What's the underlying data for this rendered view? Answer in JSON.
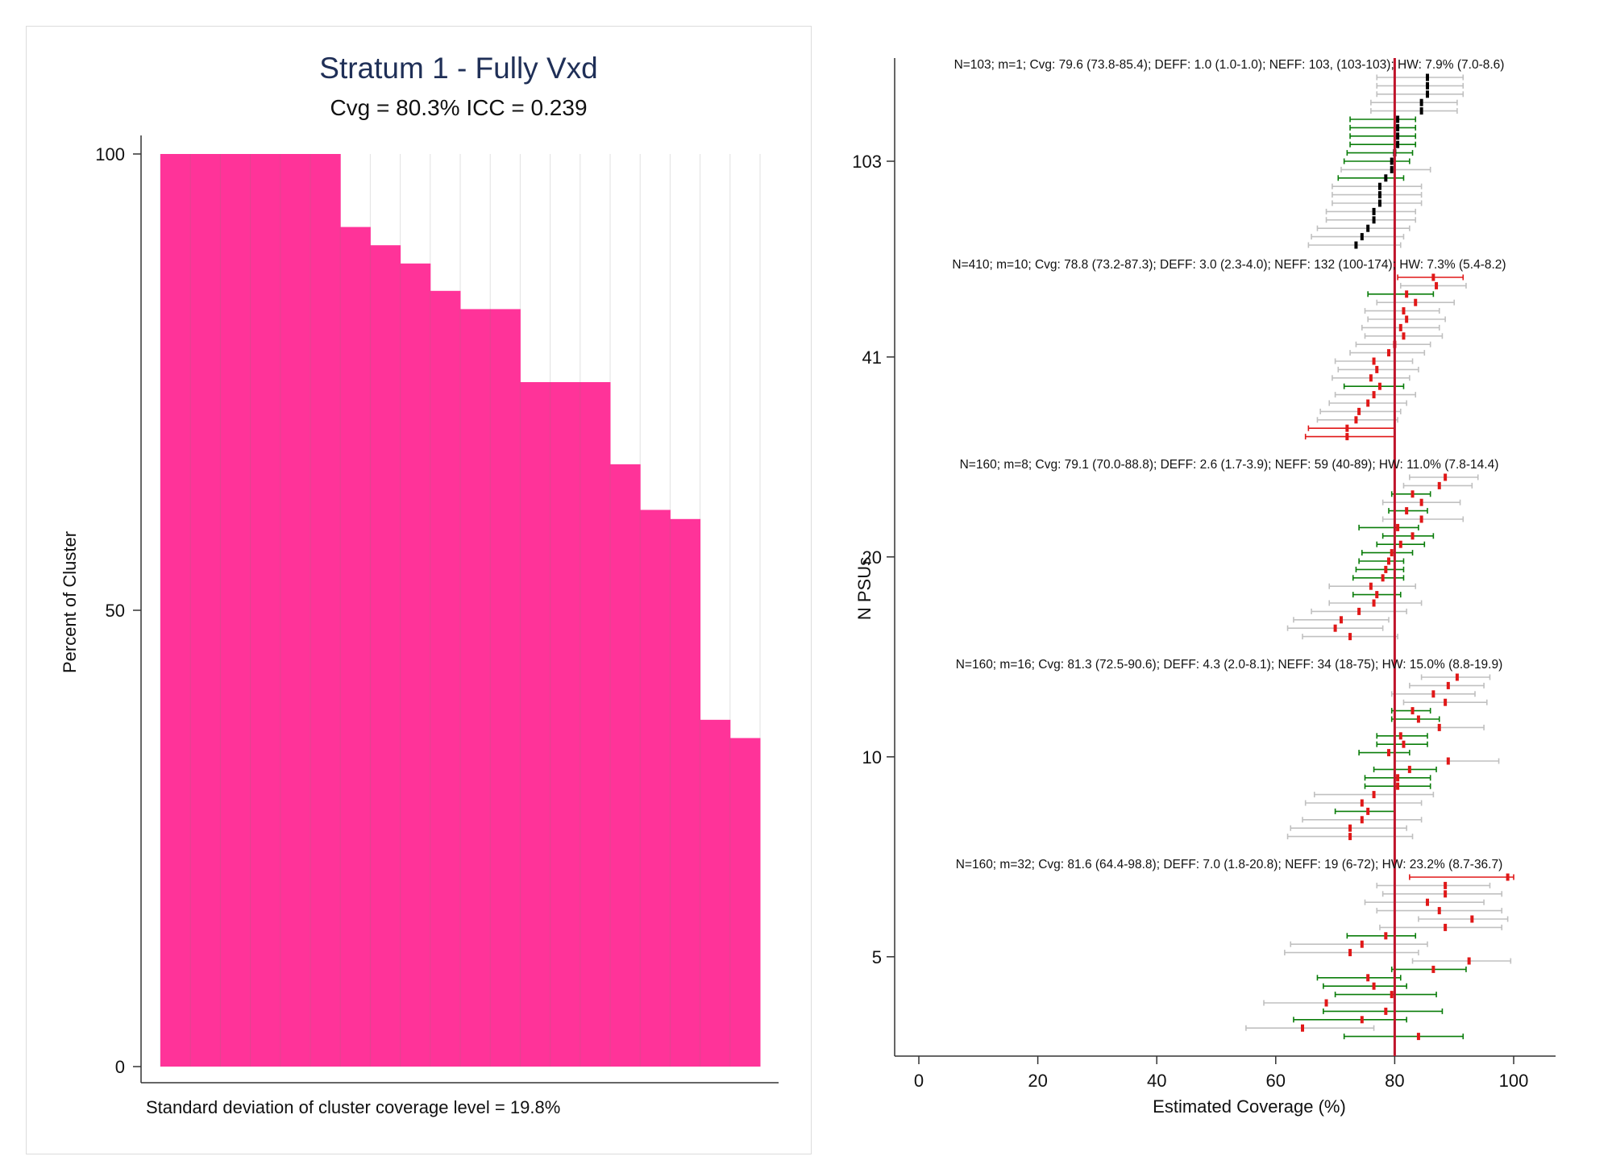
{
  "colors": {
    "bar_fill": "#ff3399",
    "title": "#1f2f57",
    "ci_gray": "#c0c0c0",
    "ci_green": "#0a7d0a",
    "ci_red": "#e01818",
    "point_black": "#000000",
    "point_red": "#e01818",
    "ref_line": "#c0142b"
  },
  "chart_data": [
    {
      "type": "bar",
      "title": "Stratum 1 - Fully Vxd",
      "subtitle": "Cvg = 80.3% ICC = 0.239",
      "ylabel": "Percent of Cluster",
      "xlabel": "",
      "ylim": [
        0,
        100
      ],
      "yticks": [
        0,
        50,
        100
      ],
      "grid": true,
      "footnote": "Standard deviation of cluster coverage level = 19.8%",
      "values": [
        100,
        100,
        100,
        100,
        100,
        100,
        92,
        90,
        88,
        85,
        83,
        83,
        75,
        75,
        75,
        66,
        61,
        60,
        38,
        36
      ]
    },
    {
      "type": "scatter",
      "ylabel": "N PSUs",
      "xlabel": "Estimated Coverage (%)",
      "xlim": [
        0,
        100
      ],
      "xticks": [
        0,
        20,
        40,
        60,
        80,
        100
      ],
      "yticks": [
        "103",
        "41",
        "20",
        "10",
        "5"
      ],
      "reference_line": 80,
      "panels": [
        {
          "label": "N=103; m=1; Cvg: 79.6 (73.8-85.4); DEFF: 1.0 (1.0-1.0); NEFF: 103, (103-103); HW: 7.9% (7.0-8.6)",
          "ytick": "103",
          "point_color": "black",
          "points": [
            {
              "est": 85.5,
              "lo": 77.0,
              "hi": 91.5,
              "c": "gray"
            },
            {
              "est": 85.5,
              "lo": 77.0,
              "hi": 91.5,
              "c": "gray"
            },
            {
              "est": 85.5,
              "lo": 77.0,
              "hi": 91.5,
              "c": "gray"
            },
            {
              "est": 84.5,
              "lo": 76.0,
              "hi": 90.5,
              "c": "gray"
            },
            {
              "est": 84.5,
              "lo": 76.0,
              "hi": 90.5,
              "c": "gray"
            },
            {
              "est": 80.5,
              "lo": 72.5,
              "hi": 83.5,
              "c": "green"
            },
            {
              "est": 80.5,
              "lo": 72.5,
              "hi": 83.5,
              "c": "green"
            },
            {
              "est": 80.5,
              "lo": 72.5,
              "hi": 83.5,
              "c": "green"
            },
            {
              "est": 80.5,
              "lo": 72.5,
              "hi": 83.5,
              "c": "green"
            },
            {
              "est": 80.0,
              "lo": 72.0,
              "hi": 83.0,
              "c": "green"
            },
            {
              "est": 79.5,
              "lo": 71.5,
              "hi": 82.5,
              "c": "green"
            },
            {
              "est": 79.5,
              "lo": 71.0,
              "hi": 86.0,
              "c": "gray"
            },
            {
              "est": 78.5,
              "lo": 70.5,
              "hi": 81.5,
              "c": "green"
            },
            {
              "est": 77.5,
              "lo": 69.5,
              "hi": 84.5,
              "c": "gray"
            },
            {
              "est": 77.5,
              "lo": 69.5,
              "hi": 84.5,
              "c": "gray"
            },
            {
              "est": 77.5,
              "lo": 69.5,
              "hi": 84.5,
              "c": "gray"
            },
            {
              "est": 76.5,
              "lo": 68.5,
              "hi": 83.5,
              "c": "gray"
            },
            {
              "est": 76.5,
              "lo": 68.5,
              "hi": 83.5,
              "c": "gray"
            },
            {
              "est": 75.5,
              "lo": 67.0,
              "hi": 82.5,
              "c": "gray"
            },
            {
              "est": 74.5,
              "lo": 66.0,
              "hi": 81.5,
              "c": "gray"
            },
            {
              "est": 73.5,
              "lo": 65.5,
              "hi": 81.0,
              "c": "gray"
            }
          ]
        },
        {
          "label": "N=410; m=10; Cvg: 78.8 (73.2-87.3); DEFF: 3.0 (2.3-4.0); NEFF: 132 (100-174); HW: 7.3% (5.4-8.2)",
          "ytick": "41",
          "point_color": "red",
          "points": [
            {
              "est": 86.5,
              "lo": 80.5,
              "hi": 91.5,
              "c": "red"
            },
            {
              "est": 87.0,
              "lo": 81.0,
              "hi": 92.0,
              "c": "gray"
            },
            {
              "est": 82.0,
              "lo": 75.5,
              "hi": 86.5,
              "c": "green"
            },
            {
              "est": 83.5,
              "lo": 77.0,
              "hi": 90.0,
              "c": "gray"
            },
            {
              "est": 81.5,
              "lo": 75.0,
              "hi": 87.5,
              "c": "gray"
            },
            {
              "est": 82.0,
              "lo": 75.5,
              "hi": 88.5,
              "c": "gray"
            },
            {
              "est": 81.0,
              "lo": 74.5,
              "hi": 87.5,
              "c": "gray"
            },
            {
              "est": 81.5,
              "lo": 75.0,
              "hi": 88.0,
              "c": "gray"
            },
            {
              "est": 80.0,
              "lo": 73.5,
              "hi": 86.0,
              "c": "gray"
            },
            {
              "est": 79.0,
              "lo": 72.5,
              "hi": 85.0,
              "c": "gray"
            },
            {
              "est": 76.5,
              "lo": 70.0,
              "hi": 83.0,
              "c": "gray"
            },
            {
              "est": 77.0,
              "lo": 70.5,
              "hi": 84.0,
              "c": "gray"
            },
            {
              "est": 76.0,
              "lo": 69.5,
              "hi": 82.5,
              "c": "gray"
            },
            {
              "est": 77.5,
              "lo": 71.5,
              "hi": 81.5,
              "c": "green"
            },
            {
              "est": 76.5,
              "lo": 70.0,
              "hi": 83.5,
              "c": "gray"
            },
            {
              "est": 75.5,
              "lo": 69.0,
              "hi": 82.0,
              "c": "gray"
            },
            {
              "est": 74.0,
              "lo": 67.5,
              "hi": 81.0,
              "c": "gray"
            },
            {
              "est": 73.5,
              "lo": 67.0,
              "hi": 80.5,
              "c": "gray"
            },
            {
              "est": 72.0,
              "lo": 65.5,
              "hi": 80.0,
              "c": "red"
            },
            {
              "est": 72.0,
              "lo": 65.0,
              "hi": 80.0,
              "c": "red"
            }
          ]
        },
        {
          "label": "N=160; m=8; Cvg: 79.1 (70.0-88.8); DEFF: 2.6 (1.7-3.9); NEFF: 59 (40-89); HW: 11.0% (7.8-14.4)",
          "ytick": "20",
          "point_color": "red",
          "points": [
            {
              "est": 88.5,
              "lo": 82.5,
              "hi": 94.0,
              "c": "gray"
            },
            {
              "est": 87.5,
              "lo": 81.5,
              "hi": 93.0,
              "c": "gray"
            },
            {
              "est": 83.0,
              "lo": 79.5,
              "hi": 86.0,
              "c": "green"
            },
            {
              "est": 84.5,
              "lo": 78.0,
              "hi": 91.0,
              "c": "gray"
            },
            {
              "est": 82.0,
              "lo": 79.0,
              "hi": 85.5,
              "c": "green"
            },
            {
              "est": 84.5,
              "lo": 78.0,
              "hi": 91.5,
              "c": "gray"
            },
            {
              "est": 80.5,
              "lo": 74.0,
              "hi": 84.0,
              "c": "green"
            },
            {
              "est": 83.0,
              "lo": 78.0,
              "hi": 86.5,
              "c": "green"
            },
            {
              "est": 81.0,
              "lo": 77.0,
              "hi": 85.0,
              "c": "green"
            },
            {
              "est": 79.5,
              "lo": 74.5,
              "hi": 83.0,
              "c": "green"
            },
            {
              "est": 79.0,
              "lo": 74.0,
              "hi": 81.5,
              "c": "green"
            },
            {
              "est": 78.5,
              "lo": 73.5,
              "hi": 81.5,
              "c": "green"
            },
            {
              "est": 78.0,
              "lo": 73.0,
              "hi": 81.5,
              "c": "green"
            },
            {
              "est": 76.0,
              "lo": 69.0,
              "hi": 83.5,
              "c": "gray"
            },
            {
              "est": 77.0,
              "lo": 73.0,
              "hi": 81.0,
              "c": "green"
            },
            {
              "est": 76.5,
              "lo": 69.0,
              "hi": 84.5,
              "c": "gray"
            },
            {
              "est": 74.0,
              "lo": 66.0,
              "hi": 82.0,
              "c": "gray"
            },
            {
              "est": 71.0,
              "lo": 63.0,
              "hi": 79.0,
              "c": "gray"
            },
            {
              "est": 70.0,
              "lo": 62.0,
              "hi": 78.0,
              "c": "gray"
            },
            {
              "est": 72.5,
              "lo": 64.5,
              "hi": 80.5,
              "c": "gray"
            }
          ]
        },
        {
          "label": "N=160; m=16; Cvg: 81.3 (72.5-90.6); DEFF: 4.3 (2.0-8.1); NEFF: 34 (18-75); HW: 15.0% (8.8-19.9)",
          "ytick": "10",
          "point_color": "red",
          "points": [
            {
              "est": 90.5,
              "lo": 84.5,
              "hi": 96.0,
              "c": "gray"
            },
            {
              "est": 89.0,
              "lo": 82.5,
              "hi": 95.0,
              "c": "gray"
            },
            {
              "est": 86.5,
              "lo": 79.5,
              "hi": 93.5,
              "c": "gray"
            },
            {
              "est": 88.5,
              "lo": 81.5,
              "hi": 95.5,
              "c": "gray"
            },
            {
              "est": 83.0,
              "lo": 79.5,
              "hi": 86.0,
              "c": "green"
            },
            {
              "est": 84.0,
              "lo": 79.5,
              "hi": 87.5,
              "c": "green"
            },
            {
              "est": 87.5,
              "lo": 80.0,
              "hi": 95.0,
              "c": "gray"
            },
            {
              "est": 81.0,
              "lo": 77.0,
              "hi": 85.5,
              "c": "green"
            },
            {
              "est": 81.5,
              "lo": 77.0,
              "hi": 85.5,
              "c": "green"
            },
            {
              "est": 79.0,
              "lo": 74.0,
              "hi": 82.5,
              "c": "green"
            },
            {
              "est": 89.0,
              "lo": 80.0,
              "hi": 97.5,
              "c": "gray"
            },
            {
              "est": 82.5,
              "lo": 76.5,
              "hi": 87.0,
              "c": "green"
            },
            {
              "est": 80.5,
              "lo": 75.0,
              "hi": 86.0,
              "c": "green"
            },
            {
              "est": 80.5,
              "lo": 75.0,
              "hi": 86.0,
              "c": "green"
            },
            {
              "est": 76.5,
              "lo": 66.5,
              "hi": 86.5,
              "c": "gray"
            },
            {
              "est": 74.5,
              "lo": 65.0,
              "hi": 84.5,
              "c": "gray"
            },
            {
              "est": 75.5,
              "lo": 70.0,
              "hi": 80.0,
              "c": "green"
            },
            {
              "est": 74.5,
              "lo": 64.5,
              "hi": 84.5,
              "c": "gray"
            },
            {
              "est": 72.5,
              "lo": 62.5,
              "hi": 82.0,
              "c": "gray"
            },
            {
              "est": 72.5,
              "lo": 62.0,
              "hi": 83.0,
              "c": "gray"
            }
          ]
        },
        {
          "label": "N=160; m=32; Cvg: 81.6 (64.4-98.8); DEFF: 7.0 (1.8-20.8); NEFF: 19 (6-72); HW: 23.2% (8.7-36.7)",
          "ytick": "5",
          "point_color": "red",
          "points": [
            {
              "est": 99.0,
              "lo": 82.5,
              "hi": 100.0,
              "c": "red"
            },
            {
              "est": 88.5,
              "lo": 77.0,
              "hi": 96.0,
              "c": "gray"
            },
            {
              "est": 88.5,
              "lo": 78.0,
              "hi": 98.0,
              "c": "gray"
            },
            {
              "est": 85.5,
              "lo": 75.0,
              "hi": 95.0,
              "c": "gray"
            },
            {
              "est": 87.5,
              "lo": 77.0,
              "hi": 98.0,
              "c": "gray"
            },
            {
              "est": 93.0,
              "lo": 84.0,
              "hi": 99.0,
              "c": "gray"
            },
            {
              "est": 88.5,
              "lo": 77.5,
              "hi": 98.0,
              "c": "gray"
            },
            {
              "est": 78.5,
              "lo": 72.0,
              "hi": 83.5,
              "c": "green"
            },
            {
              "est": 74.5,
              "lo": 62.5,
              "hi": 85.5,
              "c": "gray"
            },
            {
              "est": 72.5,
              "lo": 61.5,
              "hi": 84.0,
              "c": "gray"
            },
            {
              "est": 92.5,
              "lo": 83.0,
              "hi": 99.5,
              "c": "gray"
            },
            {
              "est": 86.5,
              "lo": 79.5,
              "hi": 92.0,
              "c": "green"
            },
            {
              "est": 75.5,
              "lo": 67.0,
              "hi": 81.0,
              "c": "green"
            },
            {
              "est": 76.5,
              "lo": 68.0,
              "hi": 82.0,
              "c": "green"
            },
            {
              "est": 79.5,
              "lo": 70.0,
              "hi": 87.0,
              "c": "green"
            },
            {
              "est": 68.5,
              "lo": 58.0,
              "hi": 80.0,
              "c": "gray"
            },
            {
              "est": 78.5,
              "lo": 68.0,
              "hi": 88.0,
              "c": "green"
            },
            {
              "est": 74.5,
              "lo": 63.0,
              "hi": 82.0,
              "c": "green"
            },
            {
              "est": 64.5,
              "lo": 55.0,
              "hi": 76.5,
              "c": "gray"
            },
            {
              "est": 84.0,
              "lo": 71.5,
              "hi": 91.5,
              "c": "green"
            }
          ]
        }
      ]
    }
  ]
}
